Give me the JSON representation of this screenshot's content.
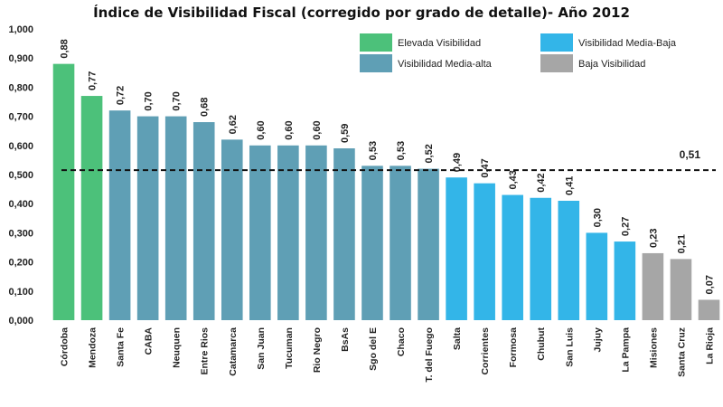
{
  "chart_data": {
    "type": "bar",
    "title": "Índice de Visibilidad Fiscal (corregido por grado de detalle)- Año 2012",
    "xlabel": "",
    "ylabel": "",
    "ylim": [
      0,
      1
    ],
    "ytick_labels": [
      "0,000",
      "0,100",
      "0,200",
      "0,300",
      "0,400",
      "0,500",
      "0,600",
      "0,700",
      "0,800",
      "0,900",
      "1,000"
    ],
    "categories": [
      "Córdoba",
      "Mendoza",
      "Santa Fe",
      "CABA",
      "Neuquen",
      "Entre Rios",
      "Catamarca",
      "San Juan",
      "Tucuman",
      "Rio Negro",
      "BsAs",
      "Sgo del E",
      "Chaco",
      "T. del Fuego",
      "Salta",
      "Corrientes",
      "Formosa",
      "Chubut",
      "San Luis",
      "Jujuy",
      "La Pampa",
      "Misiones",
      "Santa Cruz",
      "La Rioja"
    ],
    "values": [
      0.88,
      0.77,
      0.72,
      0.7,
      0.7,
      0.68,
      0.62,
      0.6,
      0.6,
      0.6,
      0.59,
      0.53,
      0.53,
      0.52,
      0.49,
      0.47,
      0.43,
      0.42,
      0.41,
      0.3,
      0.27,
      0.23,
      0.21,
      0.07
    ],
    "value_labels": [
      "0,88",
      "0,77",
      "0,72",
      "0,70",
      "0,70",
      "0,68",
      "0,62",
      "0,60",
      "0,60",
      "0,60",
      "0,59",
      "0,53",
      "0,53",
      "0,52",
      "0,49",
      "0,47",
      "0,43",
      "0,42",
      "0,41",
      "0,30",
      "0,27",
      "0,23",
      "0,21",
      "0,07"
    ],
    "groups": [
      "Elevada Visibilidad",
      "Elevada Visibilidad",
      "Visibilidad Media-alta",
      "Visibilidad Media-alta",
      "Visibilidad Media-alta",
      "Visibilidad Media-alta",
      "Visibilidad Media-alta",
      "Visibilidad Media-alta",
      "Visibilidad Media-alta",
      "Visibilidad Media-alta",
      "Visibilidad Media-alta",
      "Visibilidad Media-alta",
      "Visibilidad Media-alta",
      "Visibilidad Media-alta",
      "Visibilidad Media-Baja",
      "Visibilidad Media-Baja",
      "Visibilidad Media-Baja",
      "Visibilidad Media-Baja",
      "Visibilidad Media-Baja",
      "Visibilidad Media-Baja",
      "Visibilidad Media-Baja",
      "Baja Visibilidad",
      "Baja Visibilidad",
      "Baja Visibilidad"
    ],
    "legend": [
      {
        "name": "Elevada Visibilidad",
        "color": "#4cc17a"
      },
      {
        "name": "Visibilidad Media-Baja",
        "color": "#33b5e8"
      },
      {
        "name": "Visibilidad Media-alta",
        "color": "#5f9fb5"
      },
      {
        "name": "Baja Visibilidad",
        "color": "#a6a6a6"
      }
    ],
    "reference_line": {
      "value": 0.515,
      "label": "0,51",
      "style": "dashed"
    },
    "legend_position": "top-right",
    "grid": false
  }
}
